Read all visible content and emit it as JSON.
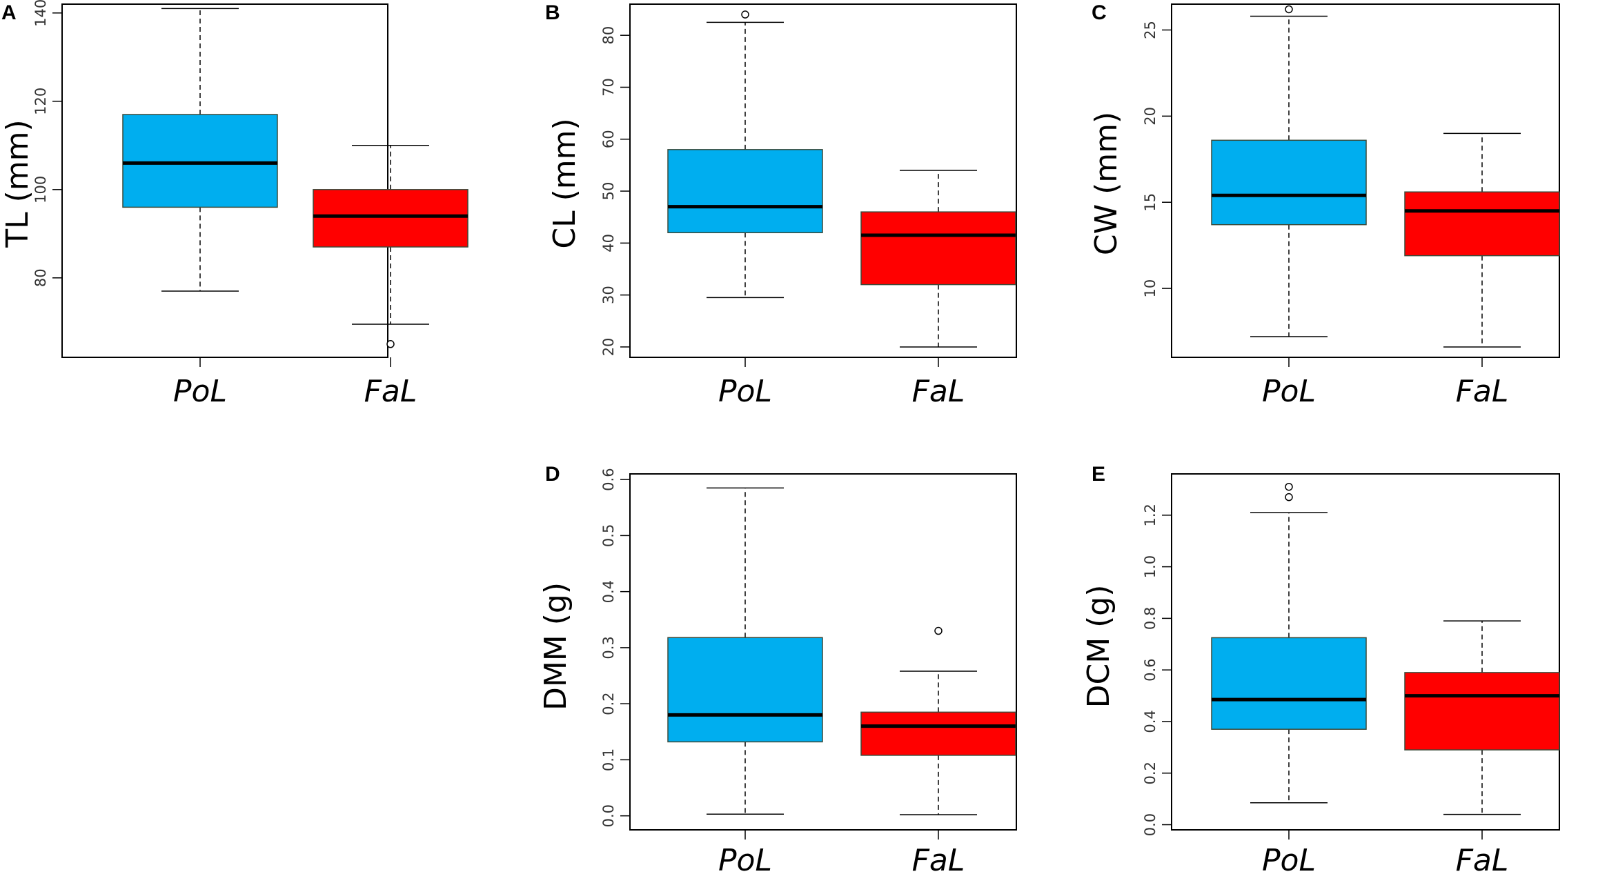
{
  "figure": {
    "colors": {
      "PoL": "#00AEEF",
      "FaL": "#FF0000",
      "frame": "#000000",
      "median": "#000000"
    },
    "panels": [
      "A",
      "B",
      "C",
      "D",
      "E"
    ]
  },
  "chart_data": [
    {
      "panel": "A",
      "type": "boxplot",
      "ylabel": "TL (mm)",
      "categories": [
        "PoL",
        "FaL"
      ],
      "ylim": [
        62,
        142
      ],
      "yticks": [
        80,
        100,
        120,
        140
      ],
      "boxes": [
        {
          "name": "PoL",
          "whisker_low": 77,
          "q1": 96,
          "median": 106,
          "q3": 117,
          "whisker_high": 141,
          "outliers": []
        },
        {
          "name": "FaL",
          "whisker_low": 69.5,
          "q1": 87,
          "median": 94,
          "q3": 100,
          "whisker_high": 110,
          "outliers": [
            65
          ]
        }
      ]
    },
    {
      "panel": "B",
      "type": "boxplot",
      "ylabel": "CL (mm)",
      "categories": [
        "PoL",
        "FaL"
      ],
      "ylim": [
        18,
        86
      ],
      "yticks": [
        20,
        30,
        40,
        50,
        60,
        70,
        80
      ],
      "boxes": [
        {
          "name": "PoL",
          "whisker_low": 29.5,
          "q1": 42,
          "median": 47,
          "q3": 58,
          "whisker_high": 82.5,
          "outliers": [
            84
          ]
        },
        {
          "name": "FaL",
          "whisker_low": 20,
          "q1": 32,
          "median": 41.5,
          "q3": 46,
          "whisker_high": 54,
          "outliers": []
        }
      ]
    },
    {
      "panel": "C",
      "type": "boxplot",
      "ylabel": "CW (mm)",
      "categories": [
        "PoL",
        "FaL"
      ],
      "ylim": [
        6,
        26.5
      ],
      "yticks": [
        10,
        15,
        20,
        25
      ],
      "boxes": [
        {
          "name": "PoL",
          "whisker_low": 7.2,
          "q1": 13.7,
          "median": 15.4,
          "q3": 18.6,
          "whisker_high": 25.8,
          "outliers": [
            26.2
          ]
        },
        {
          "name": "FaL",
          "whisker_low": 6.6,
          "q1": 11.9,
          "median": 14.5,
          "q3": 15.6,
          "whisker_high": 19.0,
          "outliers": []
        }
      ]
    },
    {
      "panel": "D",
      "type": "boxplot",
      "ylabel": "DMM (g)",
      "categories": [
        "PoL",
        "FaL"
      ],
      "ylim": [
        -0.025,
        0.61
      ],
      "yticks": [
        0.0,
        0.1,
        0.2,
        0.3,
        0.4,
        0.5,
        0.6
      ],
      "boxes": [
        {
          "name": "PoL",
          "whisker_low": 0.003,
          "q1": 0.132,
          "median": 0.18,
          "q3": 0.318,
          "whisker_high": 0.585,
          "outliers": []
        },
        {
          "name": "FaL",
          "whisker_low": 0.002,
          "q1": 0.108,
          "median": 0.16,
          "q3": 0.185,
          "whisker_high": 0.258,
          "outliers": [
            0.33
          ]
        }
      ]
    },
    {
      "panel": "E",
      "type": "boxplot",
      "ylabel": "DCM (g)",
      "categories": [
        "PoL",
        "FaL"
      ],
      "ylim": [
        -0.02,
        1.36
      ],
      "yticks": [
        0.0,
        0.2,
        0.4,
        0.6,
        0.8,
        1.0,
        1.2
      ],
      "boxes": [
        {
          "name": "PoL",
          "whisker_low": 0.085,
          "q1": 0.37,
          "median": 0.485,
          "q3": 0.725,
          "whisker_high": 1.21,
          "outliers": [
            1.27,
            1.31
          ]
        },
        {
          "name": "FaL",
          "whisker_low": 0.04,
          "q1": 0.29,
          "median": 0.5,
          "q3": 0.59,
          "whisker_high": 0.79,
          "outliers": []
        }
      ]
    }
  ]
}
